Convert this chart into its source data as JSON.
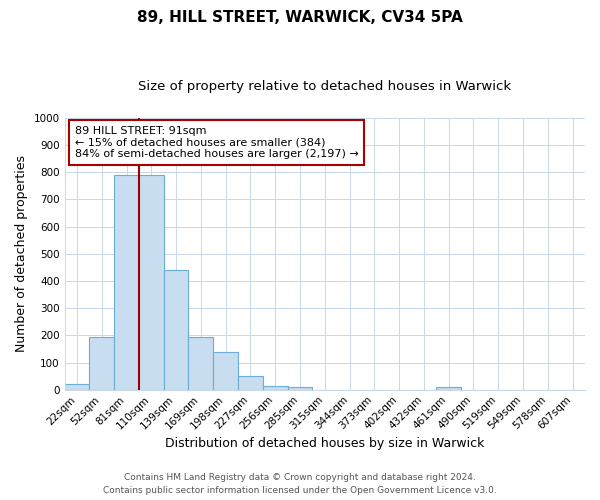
{
  "title": "89, HILL STREET, WARWICK, CV34 5PA",
  "subtitle": "Size of property relative to detached houses in Warwick",
  "xlabel": "Distribution of detached houses by size in Warwick",
  "ylabel": "Number of detached properties",
  "bar_labels": [
    "22sqm",
    "52sqm",
    "81sqm",
    "110sqm",
    "139sqm",
    "169sqm",
    "198sqm",
    "227sqm",
    "256sqm",
    "285sqm",
    "315sqm",
    "344sqm",
    "373sqm",
    "402sqm",
    "432sqm",
    "461sqm",
    "490sqm",
    "519sqm",
    "549sqm",
    "578sqm",
    "607sqm"
  ],
  "bar_values": [
    20,
    195,
    790,
    790,
    440,
    195,
    140,
    50,
    15,
    10,
    0,
    0,
    0,
    0,
    0,
    10,
    0,
    0,
    0,
    0,
    0
  ],
  "bar_color": "#c9ddf0",
  "bar_edgecolor": "#6aaed6",
  "vline_x_idx": 2,
  "vline_color": "#a00000",
  "annotation_line1": "89 HILL STREET: 91sqm",
  "annotation_line2": "← 15% of detached houses are smaller (384)",
  "annotation_line3": "84% of semi-detached houses are larger (2,197) →",
  "annotation_box_color": "#ffffff",
  "annotation_box_edgecolor": "#aa0000",
  "ylim": [
    0,
    1000
  ],
  "yticks": [
    0,
    100,
    200,
    300,
    400,
    500,
    600,
    700,
    800,
    900,
    1000
  ],
  "footnote1": "Contains HM Land Registry data © Crown copyright and database right 2024.",
  "footnote2": "Contains public sector information licensed under the Open Government Licence v3.0.",
  "bg_color": "#ffffff",
  "grid_color": "#c8d8ea",
  "title_fontsize": 11,
  "subtitle_fontsize": 9.5,
  "axis_label_fontsize": 9,
  "tick_fontsize": 7.5,
  "annotation_fontsize": 8,
  "footnote_fontsize": 6.5
}
